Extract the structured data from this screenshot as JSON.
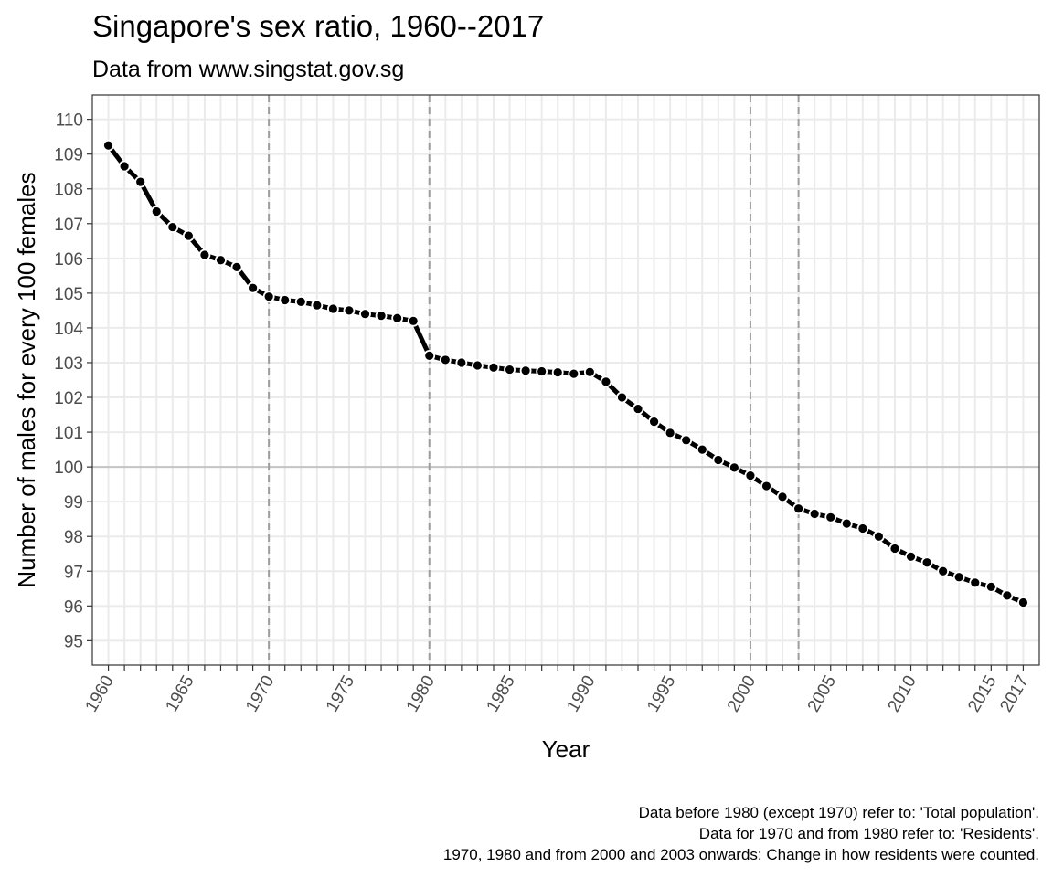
{
  "chart_data": {
    "type": "line",
    "title": "Singapore's sex ratio, 1960--2017",
    "subtitle": "Data from www.singstat.gov.sg",
    "xlabel": "Year",
    "ylabel": "Number of males for every 100 females",
    "xlim": [
      1959,
      2018
    ],
    "ylim": [
      94.3,
      110.7
    ],
    "grid": true,
    "x_ticks_labeled": [
      1960,
      1965,
      1970,
      1975,
      1980,
      1985,
      1990,
      1995,
      2000,
      2005,
      2010,
      2015,
      2017
    ],
    "y_ticks": [
      95,
      96,
      97,
      98,
      99,
      100,
      101,
      102,
      103,
      104,
      105,
      106,
      107,
      108,
      109,
      110
    ],
    "reference_hline": 100,
    "reference_vlines": [
      1970,
      1980,
      2000,
      2003
    ],
    "x": [
      1960,
      1961,
      1962,
      1963,
      1964,
      1965,
      1966,
      1967,
      1968,
      1969,
      1970,
      1971,
      1972,
      1973,
      1974,
      1975,
      1976,
      1977,
      1978,
      1979,
      1980,
      1981,
      1982,
      1983,
      1984,
      1985,
      1986,
      1987,
      1988,
      1989,
      1990,
      1991,
      1992,
      1993,
      1994,
      1995,
      1996,
      1997,
      1998,
      1999,
      2000,
      2001,
      2002,
      2003,
      2004,
      2005,
      2006,
      2007,
      2008,
      2009,
      2010,
      2011,
      2012,
      2013,
      2014,
      2015,
      2016,
      2017
    ],
    "values": [
      109.25,
      108.65,
      108.2,
      107.35,
      106.9,
      106.65,
      106.1,
      105.95,
      105.75,
      105.15,
      104.9,
      104.8,
      104.75,
      104.65,
      104.55,
      104.5,
      104.4,
      104.35,
      104.28,
      104.2,
      103.2,
      103.08,
      103.0,
      102.92,
      102.86,
      102.8,
      102.77,
      102.75,
      102.72,
      102.68,
      102.73,
      102.45,
      102.0,
      101.67,
      101.3,
      100.98,
      100.77,
      100.5,
      100.2,
      99.98,
      99.75,
      99.45,
      99.14,
      98.8,
      98.65,
      98.55,
      98.37,
      98.23,
      98.0,
      97.65,
      97.42,
      97.25,
      97.0,
      96.83,
      96.67,
      96.55,
      96.3,
      96.1
    ]
  },
  "caption": {
    "line1": "Data before 1980 (except 1970) refer to: 'Total population'.",
    "line2": "Data for 1970 and from 1980 refer to: 'Residents'.",
    "line3": "1970, 1980 and from 2000 and 2003 onwards: Change in how residents were counted."
  }
}
